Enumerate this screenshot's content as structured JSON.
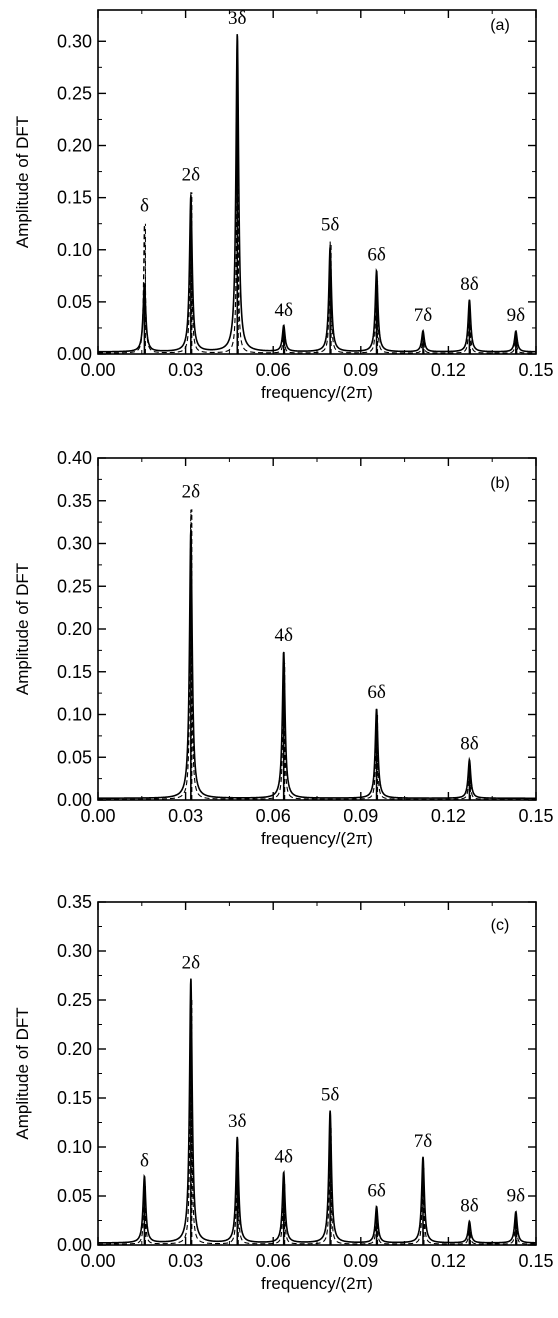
{
  "chart_data": [
    {
      "type": "line",
      "panel_label": "(a)",
      "xlabel": "frequency/(2π)",
      "ylabel": "Amplitude of DFT",
      "xlim": [
        0,
        0.15
      ],
      "ylim": [
        0,
        0.33
      ],
      "xticks": [
        "0.00",
        "0.03",
        "0.06",
        "0.09",
        "0.12",
        "0.15"
      ],
      "yticks": [
        "0.00",
        "0.05",
        "0.10",
        "0.15",
        "0.20",
        "0.25",
        "0.30"
      ],
      "peaks": [
        {
          "label": "δ",
          "x": 0.0159,
          "solid": 0.065,
          "dashed": 0.125
        },
        {
          "label": "2δ",
          "x": 0.0318,
          "solid": 0.15,
          "dashed": 0.155
        },
        {
          "label": "3δ",
          "x": 0.0477,
          "solid": 0.305,
          "dashed": 0.19
        },
        {
          "label": "4δ",
          "x": 0.0636,
          "solid": 0.025,
          "dashed": 0.02
        },
        {
          "label": "5δ",
          "x": 0.0795,
          "solid": 0.1,
          "dashed": 0.107
        },
        {
          "label": "6δ",
          "x": 0.0954,
          "solid": 0.078,
          "dashed": 0.07
        },
        {
          "label": "7δ",
          "x": 0.1113,
          "solid": 0.02,
          "dashed": 0.015
        },
        {
          "label": "8δ",
          "x": 0.1272,
          "solid": 0.05,
          "dashed": 0.045
        },
        {
          "label": "9δ",
          "x": 0.1431,
          "solid": 0.02,
          "dashed": 0.015
        }
      ],
      "grid": false
    },
    {
      "type": "line",
      "panel_label": "(b)",
      "xlabel": "frequency/(2π)",
      "ylabel": "Amplitude of DFT",
      "xlim": [
        0,
        0.15
      ],
      "ylim": [
        0,
        0.4
      ],
      "xticks": [
        "0.00",
        "0.03",
        "0.06",
        "0.09",
        "0.12",
        "0.15"
      ],
      "yticks": [
        "0.00",
        "0.05",
        "0.10",
        "0.15",
        "0.20",
        "0.25",
        "0.30",
        "0.35",
        "0.40"
      ],
      "peaks": [
        {
          "label": "2δ",
          "x": 0.0318,
          "solid": 0.315,
          "dashed": 0.34
        },
        {
          "label": "4δ",
          "x": 0.0636,
          "solid": 0.172,
          "dashed": 0.16
        },
        {
          "label": "6δ",
          "x": 0.0954,
          "solid": 0.105,
          "dashed": 0.1
        },
        {
          "label": "8δ",
          "x": 0.1272,
          "solid": 0.045,
          "dashed": 0.04
        }
      ],
      "grid": false
    },
    {
      "type": "line",
      "panel_label": "(c)",
      "xlabel": "frequency/(2π)",
      "ylabel": "Amplitude of DFT",
      "xlim": [
        0,
        0.15
      ],
      "ylim": [
        0,
        0.35
      ],
      "xticks": [
        "0.00",
        "0.03",
        "0.06",
        "0.09",
        "0.12",
        "0.15"
      ],
      "yticks": [
        "0.00",
        "0.05",
        "0.10",
        "0.15",
        "0.20",
        "0.25",
        "0.30",
        "0.35"
      ],
      "peaks": [
        {
          "label": "δ",
          "x": 0.0159,
          "solid": 0.068,
          "dashed": 0.06
        },
        {
          "label": "2δ",
          "x": 0.0318,
          "solid": 0.27,
          "dashed": 0.25
        },
        {
          "label": "3δ",
          "x": 0.0477,
          "solid": 0.108,
          "dashed": 0.095
        },
        {
          "label": "4δ",
          "x": 0.0636,
          "solid": 0.072,
          "dashed": 0.065
        },
        {
          "label": "5δ",
          "x": 0.0795,
          "solid": 0.135,
          "dashed": 0.12
        },
        {
          "label": "6δ",
          "x": 0.0954,
          "solid": 0.037,
          "dashed": 0.03
        },
        {
          "label": "7δ",
          "x": 0.1113,
          "solid": 0.088,
          "dashed": 0.08
        },
        {
          "label": "8δ",
          "x": 0.1272,
          "solid": 0.022,
          "dashed": 0.018
        },
        {
          "label": "9δ",
          "x": 0.1431,
          "solid": 0.032,
          "dashed": 0.028
        }
      ],
      "grid": false
    }
  ]
}
